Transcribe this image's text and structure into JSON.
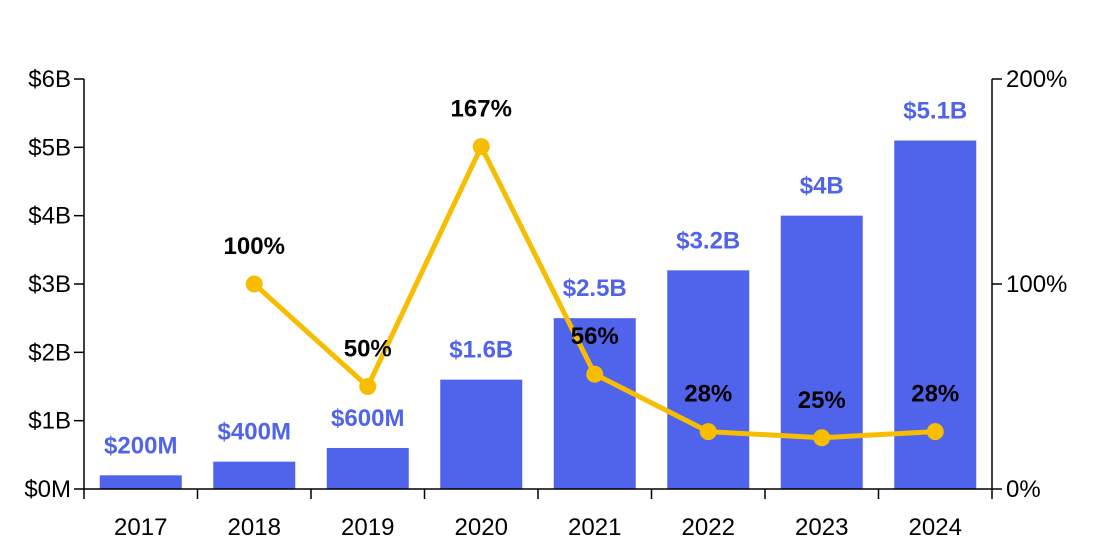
{
  "chart_data": {
    "type": "bar",
    "categories": [
      "2017",
      "2018",
      "2019",
      "2020",
      "2021",
      "2022",
      "2023",
      "2024"
    ],
    "series": [
      {
        "type": "bar",
        "axis": "left",
        "values": [
          0.2,
          0.4,
          0.6,
          1.6,
          2.5,
          3.2,
          4.0,
          5.1
        ],
        "labels": [
          "$200M",
          "$400M",
          "$600M",
          "$1.6B",
          "$2.5B",
          "$3.2B",
          "$4B",
          "$5.1B"
        ],
        "color": "#5063EB"
      },
      {
        "type": "line",
        "axis": "right",
        "values": [
          null,
          100,
          50,
          167,
          56,
          28,
          25,
          28
        ],
        "labels": [
          "",
          "100%",
          "50%",
          "167%",
          "56%",
          "28%",
          "25%",
          "28%"
        ],
        "color": "#F7BD00"
      }
    ],
    "y_left": {
      "ylim": [
        0,
        6
      ],
      "ticks": [
        0,
        1,
        2,
        3,
        4,
        5,
        6
      ],
      "tick_labels": [
        "$0M",
        "$1B",
        "$2B",
        "$3B",
        "$4B",
        "$5B",
        "$6B"
      ]
    },
    "y_right": {
      "ylim": [
        0,
        200
      ],
      "ticks": [
        0,
        100,
        200
      ],
      "tick_labels": [
        "0%",
        "100%",
        "200%"
      ]
    },
    "grid": false,
    "legend": "none",
    "title": "",
    "xlabel": "",
    "ylabel": ""
  }
}
